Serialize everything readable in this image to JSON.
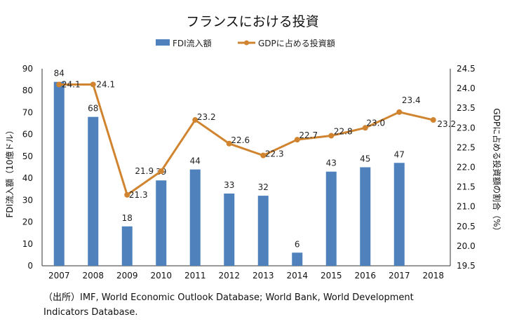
{
  "chart_data": {
    "type": "bar+line",
    "title": "フランスにおける投資",
    "categories": [
      "2007",
      "2008",
      "2009",
      "2010",
      "2011",
      "2012",
      "2013",
      "2014",
      "2015",
      "2016",
      "2017",
      "2018"
    ],
    "series": [
      {
        "name": "FDI流入額",
        "type": "bar",
        "axis": "left",
        "values": [
          84,
          68,
          18,
          39,
          44,
          33,
          32,
          6,
          43,
          45,
          47,
          null
        ],
        "labels": [
          "84",
          "68",
          "18",
          "39",
          "44",
          "33",
          "32",
          "6",
          "43",
          "45",
          "47",
          ""
        ]
      },
      {
        "name": "GDPに占める投資額",
        "type": "line",
        "axis": "right",
        "values": [
          24.1,
          24.1,
          21.3,
          21.9,
          23.2,
          22.6,
          22.3,
          22.7,
          22.8,
          23.0,
          23.4,
          23.2
        ],
        "labels": [
          "24.1",
          "24.1",
          "21.3",
          "21.9",
          "23.2",
          "22.6",
          "22.3",
          "22.7",
          "22.8",
          "23.0",
          "23.4",
          "23.2"
        ]
      }
    ],
    "left_axis": {
      "label": "FDI流入額（10億ドル）",
      "min": 0,
      "max": 90,
      "ticks": [
        "0",
        "10",
        "20",
        "30",
        "40",
        "50",
        "60",
        "70",
        "80",
        "90"
      ]
    },
    "right_axis": {
      "label": "GDPに占める投資額の割合（%）",
      "min": 19.5,
      "max": 24.5,
      "ticks": [
        "19.5",
        "20.0",
        "20.5",
        "21.0",
        "21.5",
        "22.0",
        "22.5",
        "23.0",
        "23.5",
        "24.0",
        "24.5"
      ]
    },
    "legend_position": "top-center",
    "grid": false
  },
  "colors": {
    "bar": "#4f81bd",
    "line": "#d1842f",
    "axis": "#333333"
  },
  "source_line_1": "（出所）IMF, World Economic Outlook Database; World Bank, World Development",
  "source_line_2": "Indicators Database."
}
